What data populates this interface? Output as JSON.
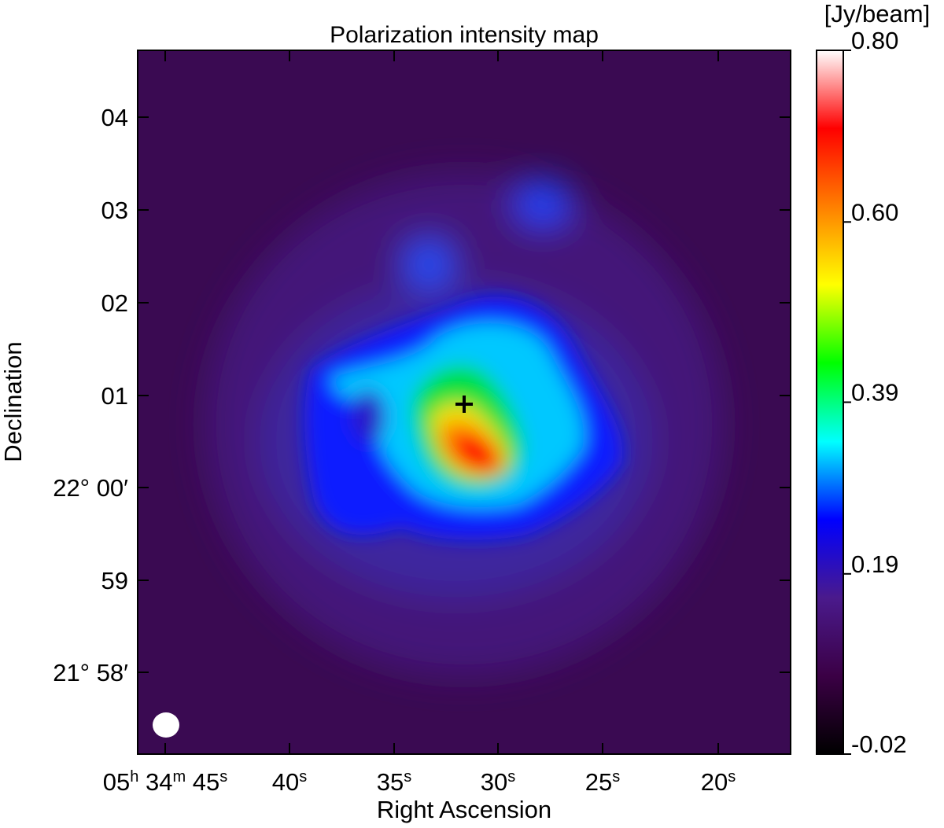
{
  "chart_data": {
    "type": "heatmap",
    "title": "Polarization intensity map",
    "xlabel": "Right Ascension",
    "ylabel": "Declination",
    "x_ticks": [
      {
        "value": "05h34m45s",
        "parts": [
          {
            "t": "05"
          },
          {
            "t": "h",
            "sup": true
          },
          {
            "t": " 34"
          },
          {
            "t": "m",
            "sup": true
          },
          {
            "t": " 45"
          },
          {
            "t": "s",
            "sup": true
          }
        ]
      },
      {
        "value": "40s",
        "parts": [
          {
            "t": "40"
          },
          {
            "t": "s",
            "sup": true
          }
        ]
      },
      {
        "value": "35s",
        "parts": [
          {
            "t": "35"
          },
          {
            "t": "s",
            "sup": true
          }
        ]
      },
      {
        "value": "30s",
        "parts": [
          {
            "t": "30"
          },
          {
            "t": "s",
            "sup": true
          }
        ]
      },
      {
        "value": "25s",
        "parts": [
          {
            "t": "25"
          },
          {
            "t": "s",
            "sup": true
          }
        ]
      },
      {
        "value": "20s",
        "parts": [
          {
            "t": "20"
          },
          {
            "t": "s",
            "sup": true
          }
        ]
      }
    ],
    "y_ticks": [
      "04",
      "03",
      "02",
      "01",
      "22° 00′",
      "59",
      "21° 58′"
    ],
    "colorbar": {
      "unit": "[Jy/beam]",
      "ticks": [
        0.8,
        0.6,
        0.39,
        0.19,
        -0.02
      ],
      "tick_labels": [
        "0.80",
        "0.60",
        "0.39",
        "0.19",
        "-0.02"
      ],
      "range": [
        -0.02,
        0.8
      ],
      "colormap": [
        "#000000",
        "#3b0045",
        "#4a1a8c",
        "#0000ff",
        "#00ffff",
        "#00ff00",
        "#ffff00",
        "#ff7f00",
        "#ff0000",
        "#ffffff"
      ]
    },
    "peak_value": 0.8,
    "background_value": 0.05,
    "markers": [
      {
        "type": "cross",
        "label": "source position",
        "color": "#000000"
      }
    ],
    "beam": {
      "shape": "ellipse",
      "color": "#ffffff"
    }
  }
}
